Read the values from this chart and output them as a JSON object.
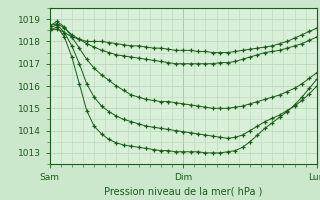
{
  "title": "Pression niveau de la mer( hPa )",
  "xlabel_ticks": [
    "Sam",
    "Dim",
    "Lun"
  ],
  "xlabel_tick_positions": [
    0,
    48,
    96
  ],
  "ylabel_ticks": [
    1013,
    1014,
    1015,
    1016,
    1017,
    1018,
    1019
  ],
  "ylim": [
    1012.5,
    1019.5
  ],
  "xlim": [
    0,
    96
  ],
  "bg_color": "#cce8cc",
  "plot_bg_color": "#d8f0d8",
  "grid_color": "#b8d8b8",
  "line_color": "#1a5c1a",
  "marker": "+",
  "series": [
    [
      1018.5,
      1018.55,
      1018.4,
      1018.2,
      1018.1,
      1018.0,
      1018.0,
      1018.0,
      1017.95,
      1017.9,
      1017.85,
      1017.8,
      1017.8,
      1017.75,
      1017.7,
      1017.7,
      1017.65,
      1017.6,
      1017.6,
      1017.6,
      1017.55,
      1017.55,
      1017.5,
      1017.5,
      1017.5,
      1017.55,
      1017.6,
      1017.65,
      1017.7,
      1017.75,
      1017.8,
      1017.9,
      1018.0,
      1018.15,
      1018.3,
      1018.45,
      1018.6
    ],
    [
      1018.7,
      1018.8,
      1018.6,
      1018.3,
      1018.1,
      1017.9,
      1017.75,
      1017.6,
      1017.5,
      1017.4,
      1017.35,
      1017.3,
      1017.25,
      1017.2,
      1017.15,
      1017.1,
      1017.05,
      1017.0,
      1017.0,
      1017.0,
      1017.0,
      1017.0,
      1017.0,
      1017.05,
      1017.05,
      1017.1,
      1017.2,
      1017.3,
      1017.4,
      1017.5,
      1017.55,
      1017.6,
      1017.7,
      1017.8,
      1017.9,
      1018.05,
      1018.2
    ],
    [
      1018.7,
      1018.9,
      1018.65,
      1018.2,
      1017.7,
      1017.2,
      1016.8,
      1016.5,
      1016.25,
      1016.0,
      1015.8,
      1015.6,
      1015.5,
      1015.4,
      1015.35,
      1015.3,
      1015.3,
      1015.25,
      1015.2,
      1015.15,
      1015.1,
      1015.05,
      1015.0,
      1015.0,
      1015.0,
      1015.05,
      1015.1,
      1015.2,
      1015.3,
      1015.4,
      1015.5,
      1015.6,
      1015.75,
      1015.9,
      1016.1,
      1016.35,
      1016.6
    ],
    [
      1018.6,
      1018.75,
      1018.4,
      1017.8,
      1017.0,
      1016.1,
      1015.5,
      1015.1,
      1014.85,
      1014.65,
      1014.5,
      1014.4,
      1014.3,
      1014.2,
      1014.15,
      1014.1,
      1014.05,
      1014.0,
      1013.95,
      1013.9,
      1013.85,
      1013.8,
      1013.75,
      1013.7,
      1013.65,
      1013.7,
      1013.8,
      1014.0,
      1014.2,
      1014.4,
      1014.55,
      1014.7,
      1014.9,
      1015.1,
      1015.35,
      1015.65,
      1016.0
    ],
    [
      1018.5,
      1018.65,
      1018.2,
      1017.3,
      1016.1,
      1014.9,
      1014.2,
      1013.85,
      1013.6,
      1013.45,
      1013.35,
      1013.3,
      1013.25,
      1013.2,
      1013.15,
      1013.1,
      1013.1,
      1013.05,
      1013.05,
      1013.05,
      1013.05,
      1013.0,
      1013.0,
      1013.0,
      1013.05,
      1013.1,
      1013.25,
      1013.5,
      1013.8,
      1014.1,
      1014.35,
      1014.6,
      1014.85,
      1015.15,
      1015.5,
      1015.9,
      1016.3
    ]
  ]
}
